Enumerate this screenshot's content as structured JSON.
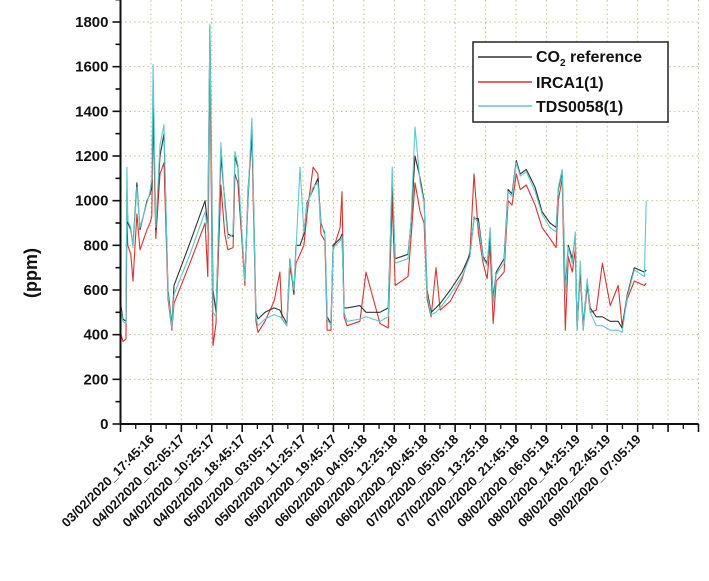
{
  "chart_data": {
    "type": "line",
    "title": "",
    "xlabel": "",
    "ylabel": "(ppm)",
    "ylim": [
      0,
      1900
    ],
    "yticks": [
      0,
      200,
      400,
      600,
      800,
      1000,
      1200,
      1400,
      1600,
      1800
    ],
    "xlim": [
      "03/02/2020 09:25",
      "09/02/2020 23:45"
    ],
    "xtick_labels": [
      "03/02/2020_17:45:16",
      "04/02/2020_02:05:17",
      "04/02/2020_10:25:17",
      "04/02/2020_18:45:17",
      "05/02/2020_03:05:17",
      "05/02/2020_11:25:17",
      "05/02/2020_19:45:17",
      "06/02/2020_04:05:18",
      "06/02/2020_12:25:18",
      "06/02/2020_20:45:18",
      "07/02/2020_05:05:18",
      "07/02/2020_13:25:18",
      "07/02/2020_21:45:18",
      "08/02/2020_06:05:19",
      "08/02/2020_14:25:19",
      "08/02/2020_22:45:19",
      "09/02/2020_07:05:19"
    ],
    "grid": true,
    "legend_position": "top-right",
    "legend": {
      "ref_main": "CO",
      "ref_sub": "2",
      "ref_rest": " reference",
      "irca": "IRCA1(1)",
      "tds": "TDS0058(1)"
    },
    "x": [
      "03/02/2020 09:15",
      "03/02/2020 10:05",
      "03/02/2020 10:55",
      "03/02/2020 11:10",
      "03/02/2020 11:25",
      "03/02/2020 12:15",
      "03/02/2020 12:50",
      "03/02/2020 13:55",
      "03/02/2020 14:45",
      "03/02/2020 16:40",
      "03/02/2020 17:30",
      "03/02/2020 18:00",
      "03/02/2020 18:20",
      "03/02/2020 19:05",
      "03/02/2020 20:15",
      "03/02/2020 21:20",
      "03/02/2020 22:25",
      "03/02/2020 23:30",
      "04/02/2020 00:05",
      "04/02/2020 04:25",
      "04/02/2020 08:35",
      "04/02/2020 09:20",
      "04/02/2020 09:55",
      "04/02/2020 10:45",
      "04/02/2020 11:35",
      "04/02/2020 12:55",
      "04/02/2020 14:00",
      "04/02/2020 14:50",
      "04/02/2020 16:15",
      "04/02/2020 16:45",
      "04/02/2020 17:35",
      "04/02/2020 18:25",
      "04/02/2020 19:30",
      "04/02/2020 20:20",
      "04/02/2020 21:25",
      "04/02/2020 22:30",
      "04/02/2020 23:05",
      "05/02/2020 01:00",
      "05/02/2020 03:30",
      "05/02/2020 05:05",
      "05/02/2020 05:40",
      "05/02/2020 07:00",
      "05/02/2020 07:50",
      "05/02/2020 08:55",
      "05/02/2020 09:30",
      "05/02/2020 10:35",
      "05/02/2020 11:40",
      "05/02/2020 12:30",
      "05/02/2020 14:10",
      "05/02/2020 15:30",
      "05/02/2020 16:20",
      "05/02/2020 17:25",
      "05/02/2020 18:00",
      "05/02/2020 19:05",
      "05/02/2020 19:40",
      "05/02/2020 21:35",
      "05/02/2020 22:05",
      "05/02/2020 22:40",
      "05/02/2020 23:30",
      "06/02/2020 03:00",
      "06/02/2020 04:40",
      "06/02/2020 08:30",
      "06/02/2020 10:45",
      "06/02/2020 11:50",
      "06/02/2020 12:40",
      "06/02/2020 16:10",
      "06/02/2020 17:00",
      "06/02/2020 18:05",
      "06/02/2020 19:30",
      "06/02/2020 20:35",
      "06/02/2020 21:25",
      "06/02/2020 22:30",
      "06/02/2020 23:50",
      "07/02/2020 01:00",
      "07/02/2020 03:45",
      "07/02/2020 07:00",
      "07/02/2020 09:10",
      "07/02/2020 10:15",
      "07/02/2020 11:25",
      "07/02/2020 12:45",
      "07/02/2020 13:50",
      "07/02/2020 14:40",
      "07/02/2020 15:30",
      "07/02/2020 16:20",
      "07/02/2020 18:30",
      "07/02/2020 19:35",
      "07/02/2020 20:40",
      "07/02/2020 21:50",
      "07/02/2020 22:55",
      "08/02/2020 00:35",
      "08/02/2020 03:00",
      "08/02/2020 04:55",
      "08/02/2020 07:05",
      "08/02/2020 08:45",
      "08/02/2020 09:20",
      "08/02/2020 10:25",
      "08/02/2020 11:15",
      "08/02/2020 12:05",
      "08/02/2020 13:10",
      "08/02/2020 14:00",
      "08/02/2020 14:30",
      "08/02/2020 15:20",
      "08/02/2020 16:10",
      "08/02/2020 17:15",
      "08/02/2020 18:05",
      "08/02/2020 19:45",
      "08/02/2020 21:25",
      "08/02/2020 23:35",
      "09/02/2020 01:45",
      "09/02/2020 02:50",
      "09/02/2020 04:15",
      "09/02/2020 06:10",
      "09/02/2020 08:55",
      "09/02/2020 09:25"
    ],
    "series": [
      {
        "name": "CO2 reference",
        "color": "#333333",
        "values": [
          560,
          470,
          460,
          1050,
          900,
          870,
          800,
          1080,
          870,
          1000,
          1030,
          1060,
          1500,
          870,
          1200,
          1300,
          600,
          440,
          620,
          810,
          1000,
          880,
          1780,
          600,
          500,
          1200,
          1000,
          850,
          840,
          1200,
          1150,
          900,
          650,
          1000,
          1350,
          500,
          470,
          500,
          520,
          510,
          490,
          450,
          740,
          580,
          800,
          800,
          850,
          990,
          1050,
          1100,
          900,
          850,
          480,
          450,
          800,
          830,
          850,
          520,
          520,
          530,
          500,
          500,
          520,
          1080,
          740,
          760,
          900,
          1200,
          1100,
          1000,
          600,
          500,
          520,
          540,
          600,
          680,
          760,
          920,
          920,
          750,
          720,
          840,
          560,
          680,
          740,
          1050,
          1030,
          1180,
          1120,
          1140,
          1060,
          950,
          900,
          880,
          1050,
          1130,
          600,
          800,
          740,
          840,
          420,
          700,
          440,
          640,
          520,
          480,
          480,
          460,
          460,
          430,
          580,
          700,
          680,
          690
        ]
      },
      {
        "name": "IRCA1(1)",
        "color": "#d9322e",
        "values": [
          420,
          370,
          380,
          900,
          800,
          760,
          640,
          940,
          780,
          870,
          900,
          930,
          1410,
          830,
          1120,
          1170,
          560,
          420,
          540,
          720,
          900,
          660,
          1620,
          350,
          450,
          1070,
          850,
          780,
          790,
          1120,
          1080,
          880,
          620,
          1050,
          1280,
          460,
          410,
          460,
          550,
          680,
          470,
          440,
          700,
          610,
          720,
          760,
          800,
          940,
          1150,
          1120,
          850,
          820,
          420,
          420,
          780,
          880,
          1040,
          480,
          440,
          460,
          680,
          450,
          430,
          1000,
          620,
          660,
          830,
          1080,
          950,
          900,
          560,
          480,
          700,
          510,
          550,
          650,
          770,
          1120,
          860,
          720,
          650,
          800,
          450,
          640,
          680,
          1000,
          980,
          1120,
          1050,
          1070,
          980,
          880,
          830,
          790,
          1000,
          1100,
          420,
          750,
          680,
          780,
          430,
          680,
          420,
          620,
          500,
          510,
          720,
          530,
          620,
          440,
          560,
          640,
          620,
          630
        ]
      },
      {
        "name": "TDS0058(1)",
        "color": "#5ec9c9",
        "values": [
          540,
          460,
          450,
          1150,
          910,
          880,
          790,
          1060,
          880,
          990,
          1040,
          1100,
          1610,
          880,
          1250,
          1340,
          580,
          430,
          580,
          760,
          950,
          860,
          1790,
          500,
          480,
          1260,
          980,
          830,
          850,
          1220,
          1160,
          920,
          640,
          1020,
          1370,
          480,
          440,
          470,
          490,
          480,
          470,
          440,
          740,
          600,
          780,
          1150,
          860,
          980,
          1060,
          1080,
          890,
          860,
          470,
          440,
          790,
          820,
          840,
          500,
          460,
          470,
          480,
          460,
          480,
          1150,
          720,
          740,
          910,
          1330,
          1080,
          990,
          580,
          490,
          500,
          520,
          580,
          660,
          750,
          930,
          900,
          740,
          710,
          880,
          540,
          670,
          720,
          1040,
          1020,
          1170,
          1110,
          1130,
          1040,
          940,
          880,
          860,
          1060,
          1140,
          580,
          790,
          720,
          860,
          420,
          730,
          420,
          650,
          500,
          440,
          440,
          420,
          420,
          410,
          570,
          690,
          660,
          1000
        ]
      }
    ]
  }
}
